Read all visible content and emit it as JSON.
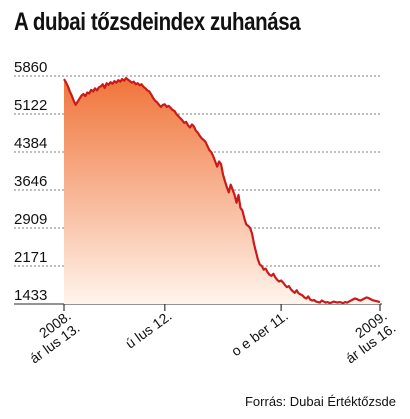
{
  "chart_data": {
    "type": "area",
    "title": "A dubai tőzsdeindex zuhanása",
    "source": "Forrás: Dubai Értéktőzsde",
    "xlabel": "",
    "ylabel": "",
    "yticks": [
      "5860",
      "5122",
      "4384",
      "3646",
      "2909",
      "2171",
      "1433"
    ],
    "ylim": [
      1433,
      5860
    ],
    "grid": true,
    "xticks": [
      {
        "lines": [
          "2008.",
          "ár lus 13."
        ],
        "index": 0
      },
      {
        "lines": [
          "ú lus 12."
        ],
        "index": 52
      },
      {
        "lines": [
          "o e  ber 11."
        ],
        "index": 112
      },
      {
        "lines": [
          "2009.",
          "ár lus 16."
        ],
        "index": 163
      }
    ],
    "series": [
      {
        "values": [
          5800,
          5740,
          5660,
          5560,
          5480,
          5380,
          5300,
          5360,
          5420,
          5480,
          5510,
          5470,
          5540,
          5520,
          5590,
          5560,
          5620,
          5580,
          5640,
          5660,
          5700,
          5630,
          5720,
          5690,
          5740,
          5710,
          5760,
          5730,
          5780,
          5750,
          5800,
          5770,
          5820,
          5790,
          5760,
          5730,
          5750,
          5700,
          5720,
          5680,
          5700,
          5650,
          5620,
          5580,
          5560,
          5500,
          5430,
          5380,
          5350,
          5300,
          5260,
          5300,
          5310,
          5260,
          5280,
          5240,
          5200,
          5180,
          5120,
          5080,
          5040,
          5000,
          4950,
          4970,
          4900,
          4860,
          4920,
          4880,
          4800,
          4760,
          4700,
          4650,
          4620,
          4580,
          4500,
          4420,
          4380,
          4300,
          4200,
          4100,
          4200,
          4150,
          3950,
          3820,
          3700,
          3600,
          3750,
          3650,
          3550,
          3400,
          3550,
          3300,
          3250,
          3100,
          2980,
          2950,
          2909,
          2800,
          2600,
          2450,
          2300,
          2200,
          2171,
          2100,
          2120,
          2050,
          2000,
          1980,
          2020,
          1950,
          1900,
          1870,
          1890,
          1850,
          1800,
          1760,
          1780,
          1720,
          1680,
          1650,
          1700,
          1640,
          1620,
          1600,
          1560,
          1540,
          1580,
          1520,
          1500,
          1510,
          1480,
          1470,
          1460,
          1500,
          1480,
          1460,
          1470,
          1450,
          1460,
          1480,
          1470,
          1460,
          1470,
          1460,
          1450,
          1470,
          1460,
          1480,
          1500,
          1520,
          1540,
          1530,
          1510,
          1500,
          1520,
          1540,
          1560,
          1550,
          1530,
          1510,
          1500,
          1490,
          1480,
          1470
        ]
      }
    ],
    "colors": {
      "line": "#cc1a1a",
      "area_top": "#f0743a",
      "area_bottom": "#fff4ec",
      "grid": "#555555"
    }
  }
}
